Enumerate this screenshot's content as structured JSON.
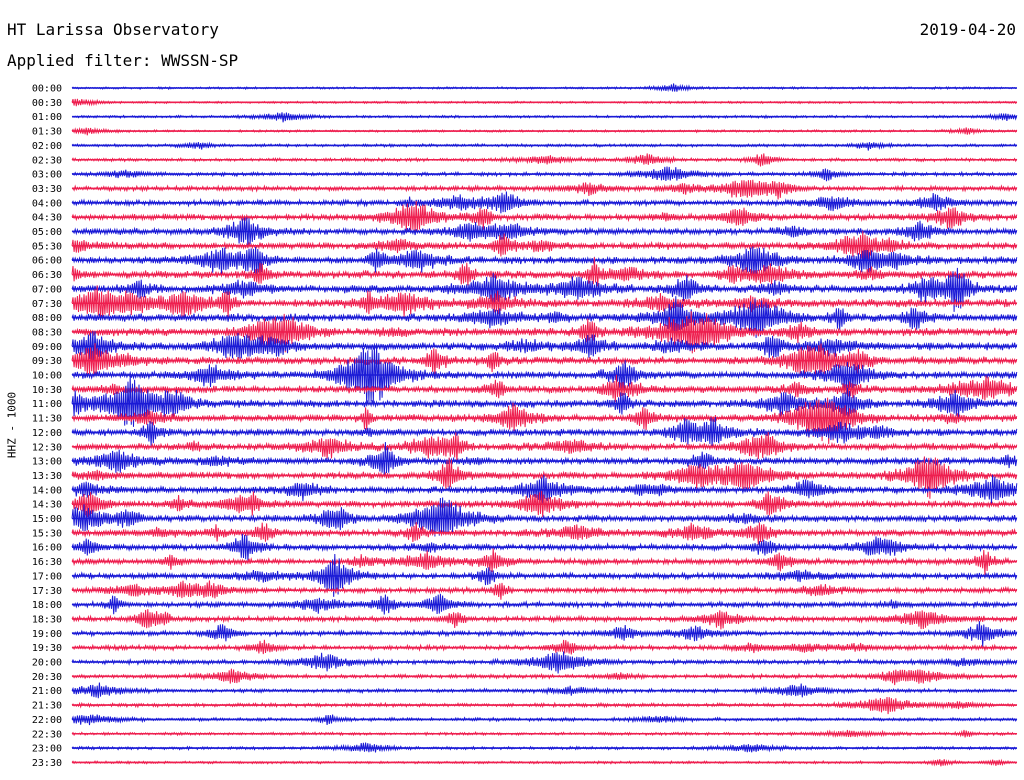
{
  "header": {
    "title": "HT Larissa Observatory",
    "filter": "Applied filter: WWSSN-SP",
    "date": "2019-04-20"
  },
  "chart_data": {
    "type": "helicorder",
    "title": "HT Larissa Observatory",
    "ylabel": "HHZ - 1000",
    "filter": "WWSSN-SP",
    "date": "2019-04-20",
    "row_minutes": 30,
    "time_labels": [
      "00:00",
      "00:30",
      "01:00",
      "01:30",
      "02:00",
      "02:30",
      "03:00",
      "03:30",
      "04:00",
      "04:30",
      "05:00",
      "05:30",
      "06:00",
      "06:30",
      "07:00",
      "07:30",
      "08:00",
      "08:30",
      "09:00",
      "09:30",
      "10:00",
      "10:30",
      "11:00",
      "11:30",
      "12:00",
      "12:30",
      "13:00",
      "13:30",
      "14:00",
      "14:30",
      "15:00",
      "15:30",
      "16:00",
      "16:30",
      "17:00",
      "17:30",
      "18:00",
      "18:30",
      "19:00",
      "19:30",
      "20:00",
      "20:30",
      "21:00",
      "21:30",
      "22:00",
      "22:30",
      "23:00",
      "23:30"
    ],
    "trace_colors": [
      "#1a1ad6",
      "#ee1f4f"
    ],
    "relative_noise_level": [
      0.1,
      0.1,
      0.15,
      0.12,
      0.2,
      0.25,
      0.3,
      0.45,
      0.55,
      0.65,
      0.7,
      0.75,
      0.8,
      0.85,
      0.9,
      0.9,
      0.9,
      0.9,
      0.85,
      0.85,
      0.8,
      0.8,
      0.8,
      0.8,
      0.75,
      0.75,
      0.75,
      0.75,
      0.7,
      0.7,
      0.7,
      0.7,
      0.65,
      0.6,
      0.6,
      0.55,
      0.55,
      0.5,
      0.45,
      0.45,
      0.4,
      0.35,
      0.3,
      0.3,
      0.25,
      0.2,
      0.2,
      0.15
    ]
  }
}
